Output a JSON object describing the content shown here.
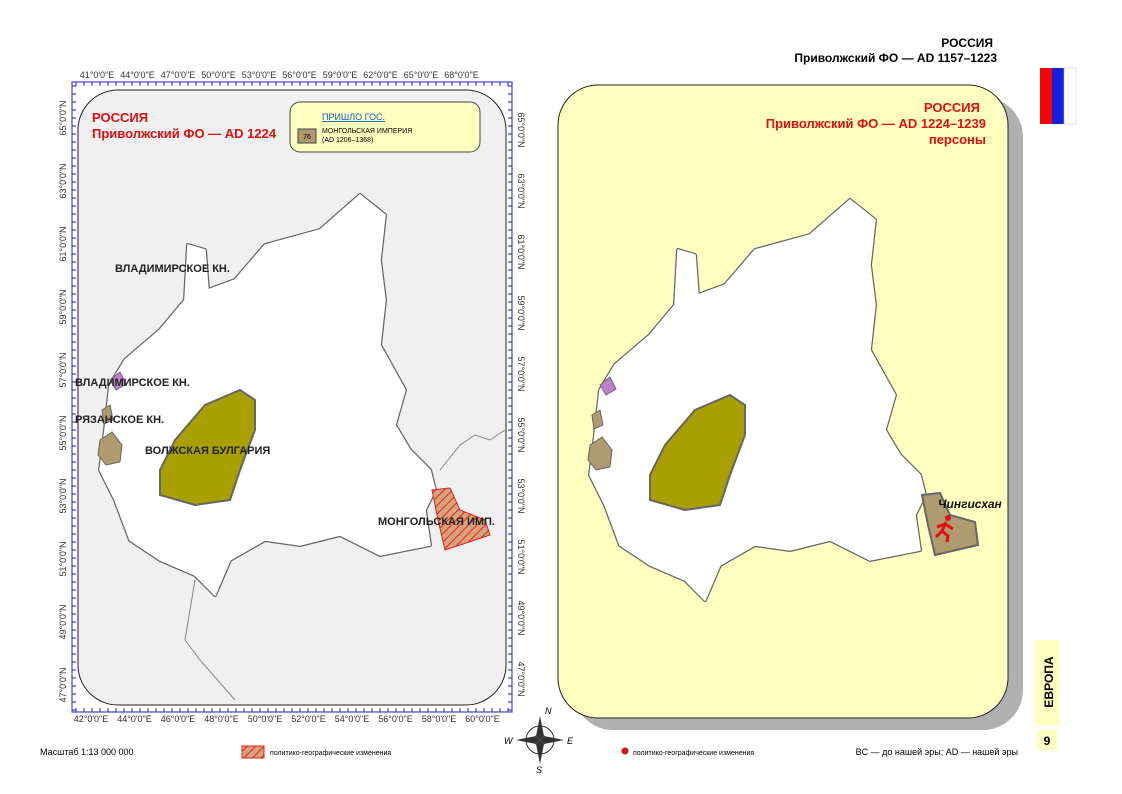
{
  "header": {
    "country": "РОССИЯ",
    "region": "Приволжский ФО — AD 1157–1223"
  },
  "left_map": {
    "title": "РОССИЯ",
    "subtitle": "Приволжский ФО — AD 1224",
    "legend": {
      "heading": "ПРИШЛО ГОС.",
      "code": "76",
      "name": "МОНГОЛЬСКАЯ ИМПЕРИЯ",
      "period": "(AD 1206–1368)"
    },
    "labels": [
      "ВЛАДИМИРСКОЕ КН.",
      "ВЛАДИМИРСКОЕ КН.",
      "РЯЗАНСКОЕ КН.",
      "ВОЛЖСКАЯ БУЛГАРИЯ",
      "МОНГОЛЬСКАЯ ИМП."
    ],
    "top_ticks": [
      "41°0'0\"E",
      "44°0'0\"E",
      "47°0'0\"E",
      "50°0'0\"E",
      "53°0'0\"E",
      "56°0'0\"E",
      "59°0'0\"E",
      "62°0'0\"E",
      "65°0'0\"E",
      "68°0'0\"E"
    ],
    "bottom_ticks": [
      "42°0'0\"E",
      "44°0'0\"E",
      "46°0'0\"E",
      "48°0'0\"E",
      "50°0'0\"E",
      "52°0'0\"E",
      "54°0'0\"E",
      "56°0'0\"E",
      "58°0'0\"E",
      "60°0'0\"E"
    ],
    "left_ticks": [
      "65°0'0\"N",
      "63°0'0\"N",
      "61°0'0\"N",
      "59°0'0\"N",
      "57°0'0\"N",
      "55°0'0\"N",
      "53°0'0\"N",
      "51°0'0\"N",
      "49°0'0\"N",
      "47°0'0\"N"
    ],
    "right_ticks": [
      "65°0'0\"N",
      "63°0'0\"N",
      "61°0'0\"N",
      "59°0'0\"N",
      "57°0'0\"N",
      "55°0'0\"N",
      "53°0'0\"N",
      "51°0'0\"N",
      "49°0'0\"N",
      "47°0'0\"N"
    ]
  },
  "right_map": {
    "title": "РОССИЯ",
    "subtitle": "Приволжский ФО — AD 1224–1239",
    "note": "персоны",
    "person": "Чингисхан"
  },
  "compass": {
    "north": "N",
    "east": "E",
    "south": "S",
    "west": "W"
  },
  "footer": {
    "scale": "Масштаб 1:13 000 000",
    "legend_left": "политико-географические изменения",
    "legend_right": "политико-географические изменения",
    "era_note": "BC — до нашей эры; AD — нашей эры",
    "section": "ЕВРОПА",
    "page": "9"
  }
}
